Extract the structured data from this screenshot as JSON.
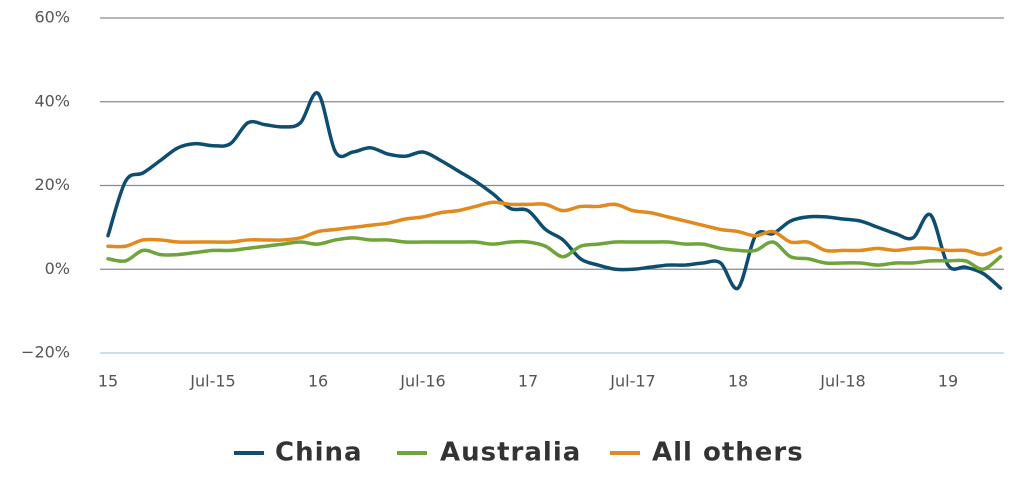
{
  "chart_data": {
    "type": "line",
    "categories": [
      "15",
      null,
      null,
      null,
      null,
      null,
      "Jul-15",
      null,
      null,
      null,
      null,
      null,
      "16",
      null,
      null,
      null,
      null,
      null,
      "Jul-16",
      null,
      null,
      null,
      null,
      null,
      "17",
      null,
      null,
      null,
      null,
      null,
      "Jul-17",
      null,
      null,
      null,
      null,
      null,
      "18",
      null,
      null,
      null,
      null,
      null,
      "Jul-18",
      null,
      null,
      null,
      null,
      null,
      "19",
      null,
      null,
      null
    ],
    "ylim": [
      -20,
      60
    ],
    "yticks": [
      {
        "value": -20,
        "label": "−20%"
      },
      {
        "value": 0,
        "label": "0%"
      },
      {
        "value": 20,
        "label": "20%"
      },
      {
        "value": 40,
        "label": "40%"
      },
      {
        "value": 60,
        "label": "60%"
      }
    ],
    "grid": true,
    "legend": "bottom",
    "series": [
      {
        "name": "China",
        "color": "#0f4d70",
        "values": [
          8,
          21,
          23,
          26,
          29,
          30,
          29.5,
          30,
          35,
          34.5,
          34,
          35,
          42,
          28,
          28,
          29,
          27.5,
          27,
          28,
          26,
          23.5,
          21,
          18,
          14.5,
          14,
          9.5,
          7,
          2.5,
          1,
          0,
          0,
          0.5,
          1,
          1,
          1.5,
          1.5,
          -4.5,
          8,
          8.5,
          11.5,
          12.5,
          12.5,
          12,
          11.5,
          10,
          8.5,
          7.5,
          13,
          1,
          0.5,
          -1,
          -4.5
        ]
      },
      {
        "name": "Australia",
        "color": "#6ea43a",
        "values": [
          2.5,
          2,
          4.5,
          3.5,
          3.5,
          4,
          4.5,
          4.5,
          5,
          5.5,
          6,
          6.5,
          6,
          7,
          7.5,
          7,
          7,
          6.5,
          6.5,
          6.5,
          6.5,
          6.5,
          6,
          6.5,
          6.5,
          5.5,
          3,
          5.5,
          6,
          6.5,
          6.5,
          6.5,
          6.5,
          6,
          6,
          5,
          4.5,
          4.5,
          6.5,
          3,
          2.5,
          1.5,
          1.5,
          1.5,
          1,
          1.5,
          1.5,
          2,
          2,
          2,
          0,
          3
        ]
      },
      {
        "name": "All others",
        "color": "#e2891f",
        "values": [
          5.5,
          5.5,
          7,
          7,
          6.5,
          6.5,
          6.5,
          6.5,
          7,
          7,
          7,
          7.5,
          9,
          9.5,
          10,
          10.5,
          11,
          12,
          12.5,
          13.5,
          14,
          15,
          16,
          15.5,
          15.5,
          15.5,
          14,
          15,
          15,
          15.5,
          14,
          13.5,
          12.5,
          11.5,
          10.5,
          9.5,
          9,
          8,
          9,
          6.5,
          6.5,
          4.5,
          4.5,
          4.5,
          5,
          4.5,
          5,
          5,
          4.5,
          4.5,
          3.5,
          5
        ]
      }
    ]
  }
}
